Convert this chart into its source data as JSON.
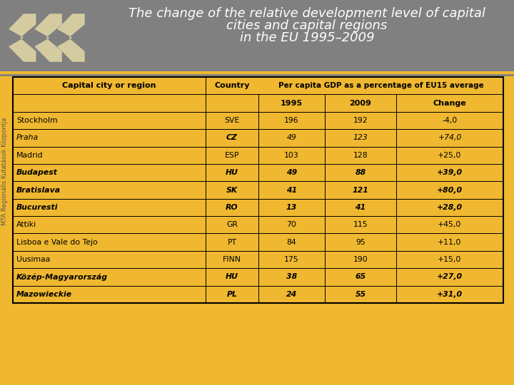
{
  "title_line1": "The change of the relative development level of capital",
  "title_line2": "cities and capital regions",
  "title_line3": "in the EU 1995–2009",
  "header_bg": "#808080",
  "table_bg": "#f0b830",
  "border_color": "#222222",
  "rows": [
    {
      "city": "Stockholm",
      "italic": false,
      "bold": false,
      "country": "SVE",
      "cbold": false,
      "v1995": "196",
      "v2009": "192",
      "change": "-4,0"
    },
    {
      "city": "Praha",
      "italic": true,
      "bold": false,
      "country": "CZ",
      "cbold": true,
      "v1995": "49",
      "v2009": "123",
      "change": "+74,0"
    },
    {
      "city": "Madrid",
      "italic": false,
      "bold": false,
      "country": "ESP",
      "cbold": false,
      "v1995": "103",
      "v2009": "128",
      "change": "+25,0"
    },
    {
      "city": "Budapest",
      "italic": true,
      "bold": true,
      "country": "HU",
      "cbold": true,
      "v1995": "49",
      "v2009": "88",
      "change": "+39,0"
    },
    {
      "city": "Bratislava",
      "italic": true,
      "bold": true,
      "country": "SK",
      "cbold": true,
      "v1995": "41",
      "v2009": "121",
      "change": "+80,0"
    },
    {
      "city": "Bucuresti",
      "italic": true,
      "bold": true,
      "country": "RO",
      "cbold": true,
      "v1995": "13",
      "v2009": "41",
      "change": "+28,0"
    },
    {
      "city": "Attiki",
      "italic": false,
      "bold": false,
      "country": "GR",
      "cbold": false,
      "v1995": "70",
      "v2009": "115",
      "change": "+45,0"
    },
    {
      "city": "Lisboa e Vale do Tejo",
      "italic": false,
      "bold": false,
      "country": "PT",
      "cbold": false,
      "v1995": "84",
      "v2009": "95",
      "change": "+11,0"
    },
    {
      "city": "Uusimaa",
      "italic": false,
      "bold": false,
      "country": "FINN",
      "cbold": false,
      "v1995": "175",
      "v2009": "190",
      "change": "+15,0"
    },
    {
      "city": "Közép-Magyarország",
      "italic": true,
      "bold": true,
      "country": "HU",
      "cbold": true,
      "v1995": "38",
      "v2009": "65",
      "change": "+27,0"
    },
    {
      "city": "Mazowieckie",
      "italic": true,
      "bold": true,
      "country": "PL",
      "cbold": true,
      "v1995": "24",
      "v2009": "55",
      "change": "+31,0"
    }
  ],
  "side_text": "MTA Regionális Kutatások Központja",
  "logo_color": "#d4cba0",
  "watermark_color": "#d9a820"
}
